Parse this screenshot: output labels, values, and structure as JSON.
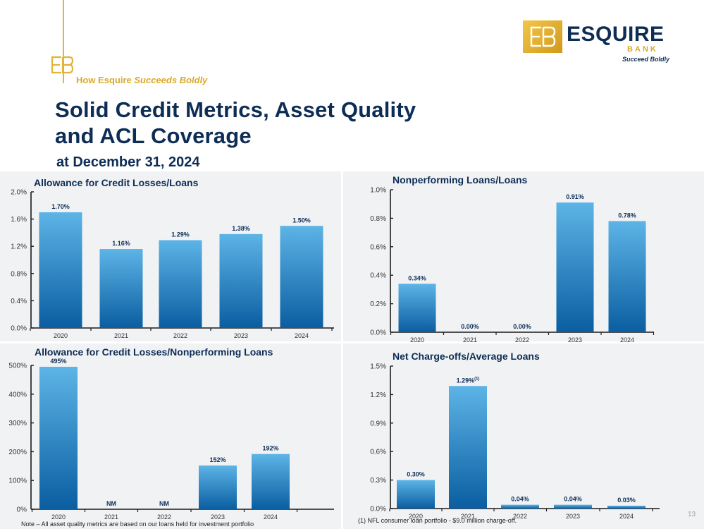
{
  "header": {
    "tagline_plain": "How Esquire",
    "tagline_italic": "Succeeds Boldly",
    "title_line1": "Solid Credit Metrics, Asset Quality",
    "title_line2": "and ACL Coverage",
    "subtitle": "at December 31, 2024"
  },
  "logo": {
    "name": "ESQUIRE",
    "sub": "BANK",
    "tagline": "Succeed Boldly"
  },
  "colors": {
    "navy": "#0d2d55",
    "gold": "#e2b53a",
    "bar_top": "#5db4e6",
    "bar_bottom": "#0a5ea1"
  },
  "footer": {
    "note": "Note – All asset quality metrics are based on our loans held for investment portfolio",
    "footnote": "(1) NFL consumer loan portfolio - $9.0 million charge-off.",
    "page_number": "13"
  },
  "chart_data": [
    {
      "type": "bar",
      "title": "Allowance for Credit Losses/Loans",
      "categories": [
        "2020",
        "2021",
        "2022",
        "2023",
        "2024"
      ],
      "values": [
        1.7,
        1.16,
        1.29,
        1.38,
        1.5
      ],
      "data_labels": [
        "1.70%",
        "1.16%",
        "1.29%",
        "1.38%",
        "1.50%"
      ],
      "ylim": [
        0,
        2.0
      ],
      "yticks": [
        0,
        0.4,
        0.8,
        1.2,
        1.6,
        2.0
      ],
      "ytick_labels": [
        "0.0%",
        "0.4%",
        "0.8%",
        "1.2%",
        "1.6%",
        "2.0%"
      ]
    },
    {
      "type": "bar",
      "title": "Nonperforming Loans/Loans",
      "categories": [
        "2020",
        "2021",
        "2022",
        "2023",
        "2024"
      ],
      "values": [
        0.34,
        0.0,
        0.0,
        0.91,
        0.78
      ],
      "data_labels": [
        "0.34%",
        "0.00%",
        "0.00%",
        "0.91%",
        "0.78%"
      ],
      "ylim": [
        0,
        1.0
      ],
      "yticks": [
        0,
        0.2,
        0.4,
        0.6,
        0.8,
        1.0
      ],
      "ytick_labels": [
        "0.0%",
        "0.2%",
        "0.4%",
        "0.6%",
        "0.8%",
        "1.0%"
      ]
    },
    {
      "type": "bar",
      "title": "Allowance for Credit Losses/Nonperforming Loans",
      "categories": [
        "2020",
        "2021",
        "2022",
        "2023",
        "2024"
      ],
      "values": [
        495,
        0,
        0,
        152,
        192
      ],
      "data_labels": [
        "495%",
        "NM",
        "NM",
        "152%",
        "192%"
      ],
      "ylim": [
        0,
        500
      ],
      "yticks": [
        0,
        100,
        200,
        300,
        400,
        500
      ],
      "ytick_labels": [
        "0%",
        "100%",
        "200%",
        "300%",
        "400%",
        "500%"
      ]
    },
    {
      "type": "bar",
      "title": "Net Charge-offs/Average Loans",
      "categories": [
        "2020",
        "2021",
        "2022",
        "2023",
        "2024"
      ],
      "values": [
        0.3,
        1.29,
        0.04,
        0.04,
        0.03
      ],
      "data_labels": [
        "0.30%",
        "1.29%",
        "0.04%",
        "0.04%",
        "0.03%"
      ],
      "label_superscripts": [
        "",
        "(1)",
        "",
        "",
        ""
      ],
      "ylim": [
        0,
        1.5
      ],
      "yticks": [
        0,
        0.3,
        0.6,
        0.9,
        1.2,
        1.5
      ],
      "ytick_labels": [
        "0.0%",
        "0.3%",
        "0.6%",
        "0.9%",
        "1.2%",
        "1.5%"
      ]
    }
  ]
}
